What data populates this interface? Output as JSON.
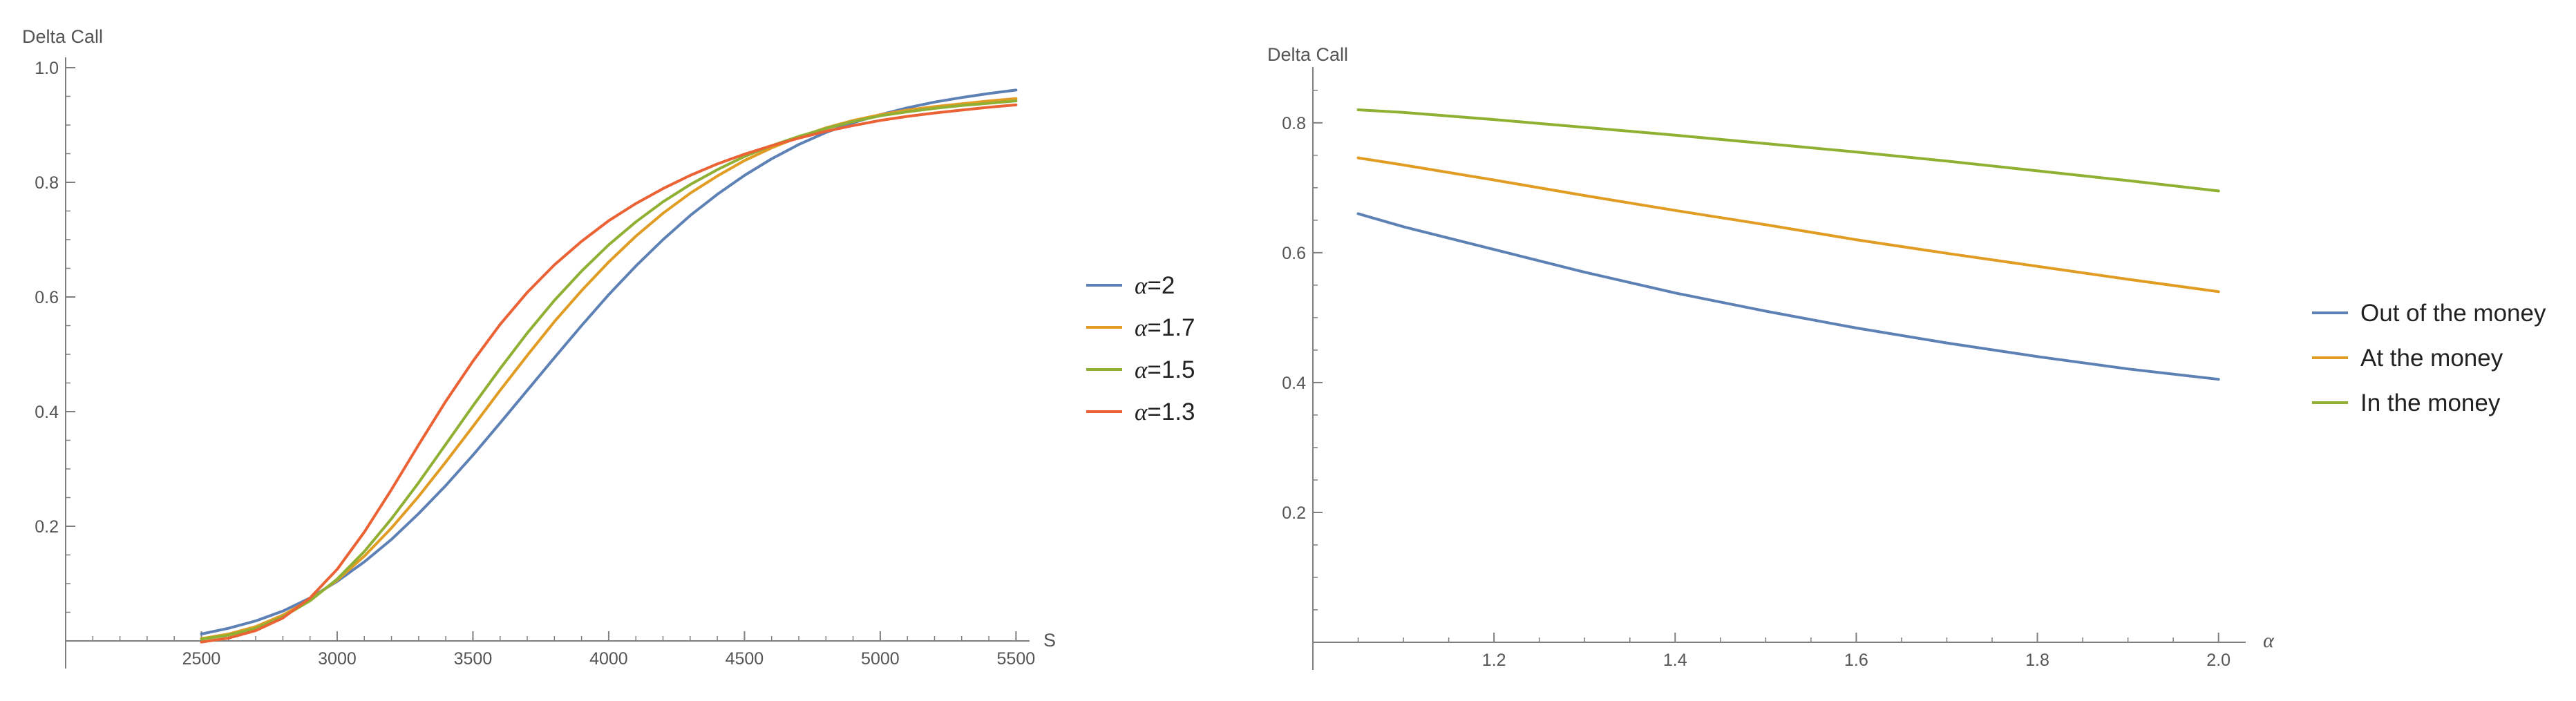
{
  "colors": {
    "blue": "#5E81B5",
    "orange": "#E19C24",
    "green": "#8FB032",
    "red": "#EB6235",
    "axis": "#7f7f7f"
  },
  "chart_data": [
    {
      "type": "line",
      "title": "",
      "ylabel": "Delta Call",
      "xlabel": "S",
      "xlim": [
        2000,
        5550
      ],
      "ylim": [
        0,
        1.0
      ],
      "xticks": [
        2500,
        3000,
        3500,
        4000,
        4500,
        5000,
        5500
      ],
      "yticks": [
        0.2,
        0.4,
        0.6,
        0.8,
        1.0
      ],
      "x": [
        2500,
        2600,
        2700,
        2800,
        2900,
        3000,
        3100,
        3200,
        3300,
        3400,
        3500,
        3600,
        3700,
        3800,
        3900,
        4000,
        4100,
        4200,
        4300,
        4400,
        4500,
        4600,
        4700,
        4800,
        4900,
        5000,
        5100,
        5200,
        5300,
        5400,
        5500
      ],
      "series": [
        {
          "alpha_symbol": "α",
          "alpha_value": "=2",
          "color": "#5E81B5",
          "values": [
            0.012,
            0.022,
            0.035,
            0.052,
            0.075,
            0.104,
            0.138,
            0.177,
            0.222,
            0.271,
            0.324,
            0.38,
            0.437,
            0.494,
            0.55,
            0.604,
            0.654,
            0.7,
            0.742,
            0.779,
            0.812,
            0.841,
            0.866,
            0.887,
            0.904,
            0.918,
            0.93,
            0.94,
            0.948,
            0.955,
            0.961
          ]
        },
        {
          "alpha_symbol": "α",
          "alpha_value": "=1.7",
          "color": "#E19C24",
          "values": [
            0.004,
            0.012,
            0.025,
            0.045,
            0.072,
            0.106,
            0.148,
            0.197,
            0.252,
            0.312,
            0.374,
            0.437,
            0.498,
            0.557,
            0.611,
            0.661,
            0.706,
            0.746,
            0.781,
            0.811,
            0.838,
            0.86,
            0.879,
            0.895,
            0.908,
            0.918,
            0.926,
            0.932,
            0.937,
            0.942,
            0.946
          ]
        },
        {
          "alpha_symbol": "α",
          "alpha_value": "=1.5",
          "color": "#8FB032",
          "values": [
            0.003,
            0.01,
            0.022,
            0.042,
            0.07,
            0.108,
            0.156,
            0.213,
            0.276,
            0.343,
            0.41,
            0.475,
            0.537,
            0.594,
            0.645,
            0.691,
            0.731,
            0.766,
            0.796,
            0.822,
            0.845,
            0.864,
            0.88,
            0.894,
            0.906,
            0.916,
            0.923,
            0.929,
            0.934,
            0.938,
            0.942
          ]
        },
        {
          "alpha_symbol": "α",
          "alpha_value": "=1.3",
          "color": "#EB6235",
          "values": [
            -0.002,
            0.005,
            0.018,
            0.04,
            0.075,
            0.125,
            0.19,
            0.264,
            0.342,
            0.418,
            0.488,
            0.552,
            0.608,
            0.656,
            0.697,
            0.733,
            0.763,
            0.789,
            0.812,
            0.832,
            0.849,
            0.864,
            0.877,
            0.889,
            0.899,
            0.908,
            0.915,
            0.921,
            0.926,
            0.931,
            0.935
          ]
        }
      ]
    },
    {
      "type": "line",
      "title": "",
      "ylabel": "Delta Call",
      "xlabel": "α",
      "xlim": [
        1.0,
        2.03
      ],
      "ylim": [
        0,
        0.87
      ],
      "xticks": [
        1.2,
        1.4,
        1.6,
        1.8,
        2.0
      ],
      "xtick_labels": [
        "1.2",
        "1.4",
        "1.6",
        "1.8",
        "2.0"
      ],
      "yticks": [
        0.2,
        0.4,
        0.6,
        0.8
      ],
      "x": [
        1.05,
        1.1,
        1.2,
        1.3,
        1.4,
        1.5,
        1.6,
        1.7,
        1.8,
        1.9,
        2.0
      ],
      "series": [
        {
          "name": "Out of the money",
          "color": "#5E81B5",
          "values": [
            0.66,
            0.64,
            0.605,
            0.57,
            0.538,
            0.51,
            0.484,
            0.461,
            0.44,
            0.421,
            0.405
          ]
        },
        {
          "name": "At the money",
          "color": "#E19C24",
          "values": [
            0.746,
            0.735,
            0.712,
            0.688,
            0.665,
            0.643,
            0.62,
            0.599,
            0.579,
            0.559,
            0.54
          ]
        },
        {
          "name": "In the money",
          "color": "#8FB032",
          "values": [
            0.82,
            0.816,
            0.805,
            0.793,
            0.781,
            0.768,
            0.755,
            0.741,
            0.726,
            0.711,
            0.695
          ]
        }
      ]
    }
  ]
}
